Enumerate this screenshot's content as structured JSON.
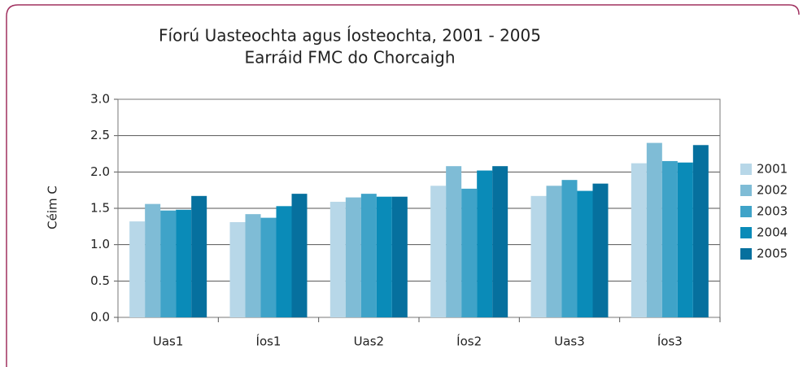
{
  "chart_data": {
    "type": "bar",
    "title": "Fíorú Uasteochta agus Íosteochta, 2001 - 2005",
    "subtitle": "Earráid FMC do Chorcaigh",
    "y_label": "Céim C",
    "categories": [
      "Uas1",
      "Íos1",
      "Uas2",
      "Íos2",
      "Uas3",
      "Íos3"
    ],
    "series": [
      {
        "name": "2001",
        "color": "#b7d7e8",
        "values": [
          1.32,
          1.31,
          1.59,
          1.81,
          1.67,
          2.12
        ]
      },
      {
        "name": "2002",
        "color": "#7fbcd6",
        "values": [
          1.56,
          1.42,
          1.65,
          2.08,
          1.81,
          2.4
        ]
      },
      {
        "name": "2003",
        "color": "#3fa3c8",
        "values": [
          1.47,
          1.37,
          1.7,
          1.77,
          1.89,
          2.15
        ]
      },
      {
        "name": "2004",
        "color": "#0a8bb8",
        "values": [
          1.48,
          1.53,
          1.66,
          2.02,
          1.74,
          2.13
        ]
      },
      {
        "name": "2005",
        "color": "#06709e",
        "values": [
          1.67,
          1.7,
          1.66,
          2.08,
          1.84,
          2.37
        ]
      }
    ],
    "ylim": [
      0,
      3
    ],
    "yticks": [
      {
        "value": 0,
        "label": "0.0"
      },
      {
        "value": 0.5,
        "label": "0.5"
      },
      {
        "value": 1,
        "label": "1.0"
      },
      {
        "value": 1.5,
        "label": "1.5"
      },
      {
        "value": 2,
        "label": "2.0"
      },
      {
        "value": 2.5,
        "label": "2.5"
      },
      {
        "value": 3,
        "label": "3.0"
      }
    ],
    "grid": true,
    "legend": "right"
  }
}
